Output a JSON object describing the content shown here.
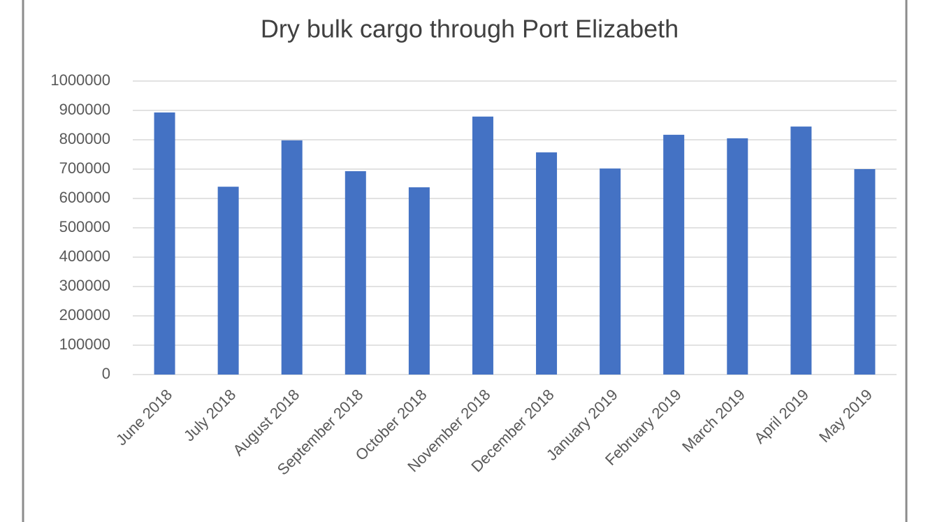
{
  "chart_data": {
    "type": "bar",
    "title": "Dry bulk cargo through Port Elizabeth",
    "categories": [
      "June 2018",
      "July 2018",
      "August 2018",
      "September 2018",
      "October 2018",
      "November 2018",
      "December 2018",
      "January 2019",
      "February 2019",
      "March 2019",
      "April 2019",
      "May 2019"
    ],
    "values": [
      893000,
      640000,
      798000,
      693000,
      638000,
      879000,
      757000,
      702000,
      817000,
      805000,
      845000,
      700000
    ],
    "color": "#4472c4",
    "ylim": [
      0,
      1000000
    ],
    "yticks": [
      0,
      100000,
      200000,
      300000,
      400000,
      500000,
      600000,
      700000,
      800000,
      900000,
      1000000
    ],
    "grid": true
  }
}
